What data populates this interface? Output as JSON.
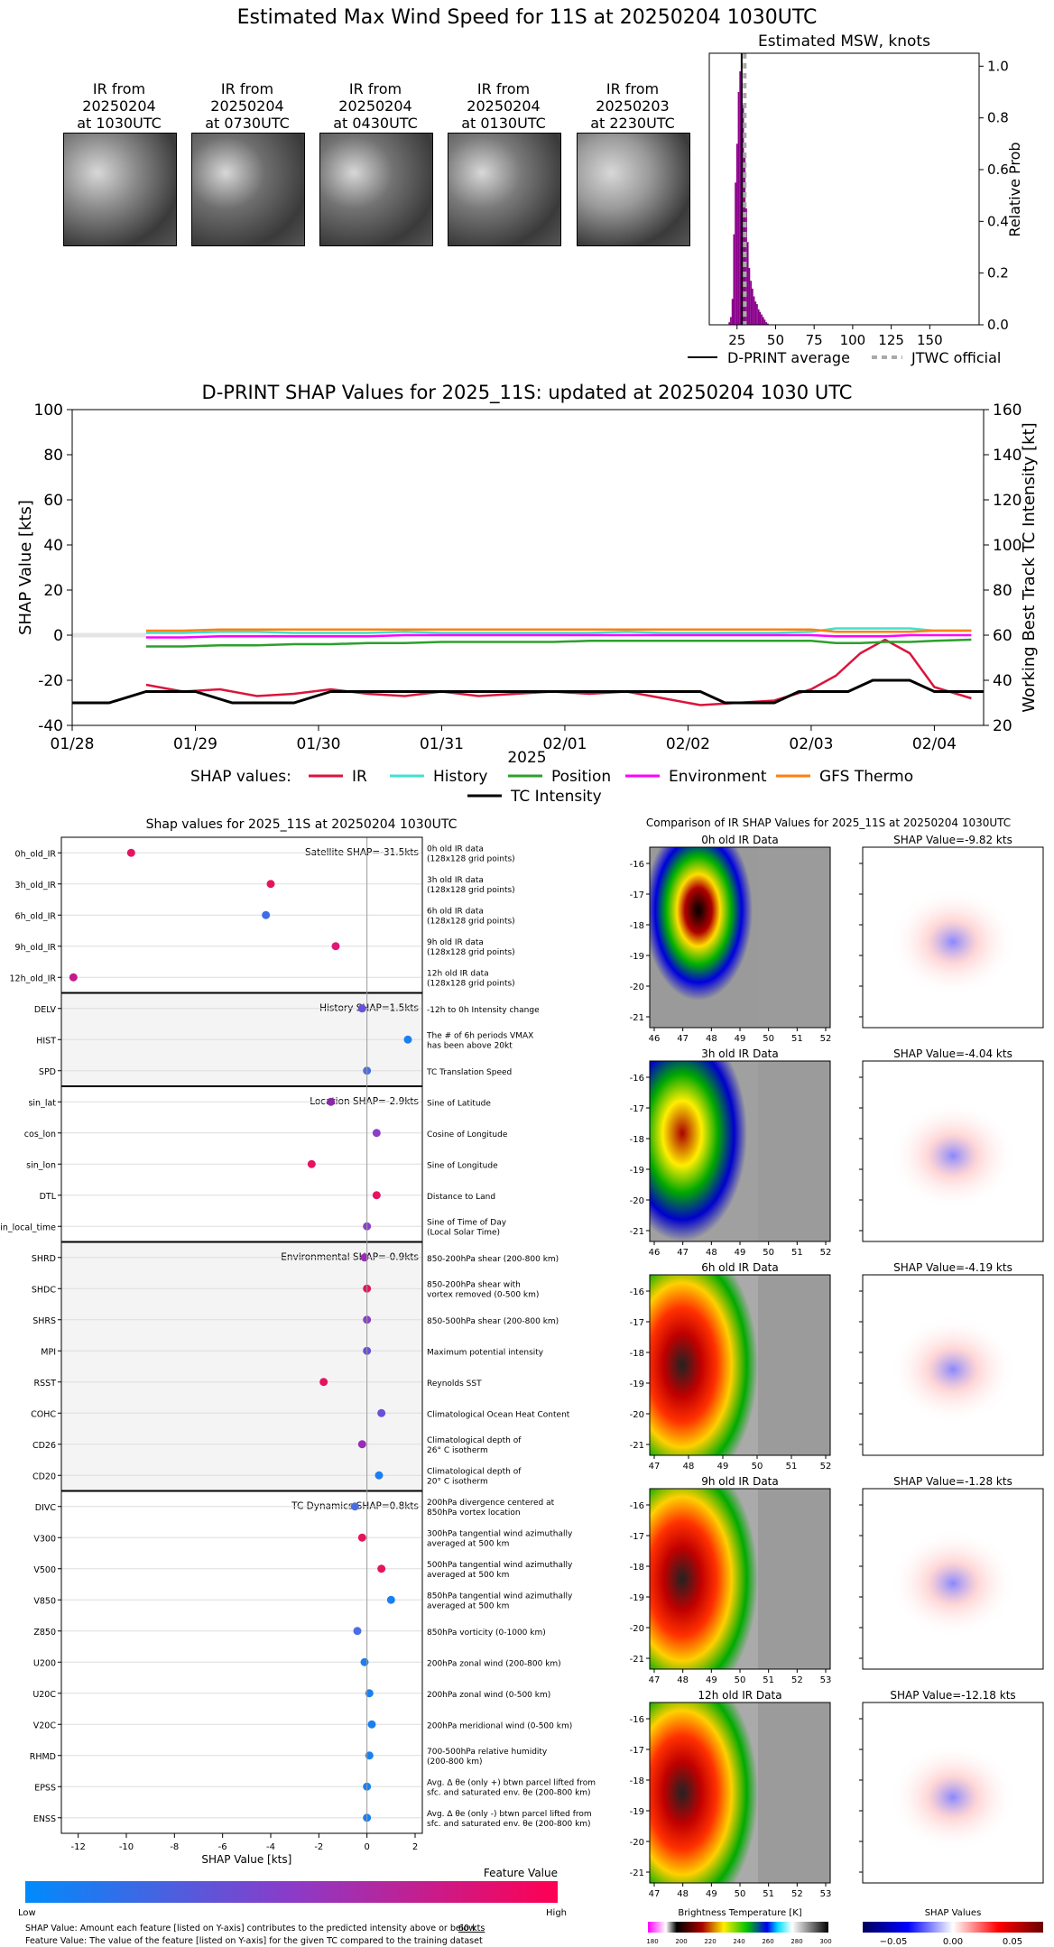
{
  "header": {
    "title": "Estimated Max Wind Speed for 11S at 20250204 1030UTC"
  },
  "ir_thumbs": [
    {
      "l1": "IR from",
      "l2": "20250204",
      "l3": "at 1030UTC",
      "tone": "#8a8a8a"
    },
    {
      "l1": "IR from",
      "l2": "20250204",
      "l3": "at 0730UTC",
      "tone": "#6f6f6f"
    },
    {
      "l1": "IR from",
      "l2": "20250204",
      "l3": "at 0430UTC",
      "tone": "#737373"
    },
    {
      "l1": "IR from",
      "l2": "20250204",
      "l3": "at 0130UTC",
      "tone": "#7a7a7a"
    },
    {
      "l1": "IR from",
      "l2": "20250203",
      "l3": "at 2230UTC",
      "tone": "#9a9a9a"
    }
  ],
  "msw_chart": {
    "title": "Estimated MSW, knots",
    "ylabel": "Relative Prob",
    "xticks": [
      25,
      50,
      75,
      100,
      125,
      150
    ],
    "yticks": [
      0.0,
      0.2,
      0.4,
      0.6,
      0.8,
      1.0
    ],
    "xlim": [
      7,
      182
    ],
    "ylim": [
      0,
      1.05
    ],
    "legend": {
      "avg": "D-PRINT average",
      "official": "JTWC official"
    },
    "dprint_average": 28,
    "jtwc_official": 30,
    "color": "#8b008b"
  },
  "chart_data": [
    {
      "type": "bar",
      "title": "Estimated MSW, knots",
      "ylabel": "Relative Prob",
      "x": [
        20,
        21,
        22,
        23,
        24,
        25,
        26,
        27,
        28,
        29,
        30,
        31,
        32,
        33,
        34,
        35,
        36,
        37,
        38,
        39,
        40,
        41,
        42,
        43,
        44,
        45
      ],
      "values": [
        0.01,
        0.03,
        0.1,
        0.35,
        0.55,
        0.7,
        0.9,
        0.98,
        0.95,
        0.85,
        0.65,
        0.45,
        0.32,
        0.22,
        0.17,
        0.14,
        0.11,
        0.09,
        0.08,
        0.06,
        0.05,
        0.04,
        0.03,
        0.02,
        0.01,
        0.005
      ]
    },
    {
      "type": "line",
      "title": "D-PRINT SHAP Values for 2025_11S: updated at 20250204 1030 UTC",
      "xlabel": "2025",
      "ylabel": "SHAP Value [kts]",
      "y2label": "Working Best Track TC Intensity [kt]",
      "xticks": [
        "01/28",
        "01/29",
        "01/30",
        "01/31",
        "02/01",
        "02/02",
        "02/03",
        "02/04"
      ],
      "ylim": [
        -40,
        100
      ],
      "y2lim": [
        20,
        160
      ],
      "x_days": [
        0.6,
        0.9,
        1.2,
        1.5,
        1.8,
        2.1,
        2.4,
        2.7,
        3.0,
        3.3,
        3.6,
        3.9,
        4.2,
        4.5,
        4.8,
        5.1,
        5.4,
        5.7,
        6.0,
        6.2,
        6.4,
        6.6,
        6.8,
        7.0,
        7.3
      ],
      "series": [
        {
          "name": "IR",
          "color": "#dc143c",
          "values": [
            -22,
            -25,
            -24,
            -27,
            -26,
            -24,
            -26,
            -27,
            -25,
            -27,
            -26,
            -25,
            -26,
            -25,
            -28,
            -31,
            -30,
            -29,
            -24,
            -18,
            -8,
            -2,
            -8,
            -23,
            -28
          ]
        },
        {
          "name": "History",
          "color": "#40e0d0",
          "values": [
            1,
            1,
            1.5,
            1.5,
            1,
            1,
            1,
            1.5,
            1,
            1,
            1,
            1,
            1,
            1.5,
            1,
            1,
            1,
            1,
            1.5,
            3,
            3,
            3,
            3,
            2,
            2
          ]
        },
        {
          "name": "Position",
          "color": "#2ca02c",
          "values": [
            -5,
            -5,
            -4.5,
            -4.5,
            -4,
            -4,
            -3.5,
            -3.5,
            -3,
            -3,
            -3,
            -3,
            -2.5,
            -2.5,
            -2.5,
            -2.5,
            -2.5,
            -2.5,
            -2.5,
            -3.5,
            -3.5,
            -3,
            -3,
            -2.5,
            -2
          ]
        },
        {
          "name": "Environment",
          "color": "#ff00ff",
          "values": [
            -1,
            -1,
            -0.5,
            -0.5,
            -0.5,
            -0.5,
            -0.5,
            0,
            0,
            0,
            0,
            0,
            0,
            0,
            0,
            0,
            0,
            0,
            0,
            -0.5,
            -0.5,
            -0.5,
            0,
            0,
            0
          ]
        },
        {
          "name": "GFS Thermo",
          "color": "#ff7f0e",
          "values": [
            2,
            2,
            2.5,
            2.5,
            2.5,
            2.5,
            2.5,
            2.5,
            2.5,
            2.5,
            2.5,
            2.5,
            2.5,
            2.5,
            2.5,
            2.5,
            2.5,
            2.5,
            2.5,
            1.5,
            1.5,
            1.5,
            1.5,
            2,
            2
          ]
        }
      ],
      "intensity": {
        "name": "TC Intensity",
        "x_days": [
          0,
          0.3,
          0.6,
          1.0,
          1.3,
          1.8,
          2.1,
          3.0,
          3.6,
          4.2,
          4.5,
          5.1,
          5.3,
          5.7,
          5.9,
          6.3,
          6.5,
          6.8,
          7.0,
          7.4
        ],
        "values": [
          30,
          30,
          35,
          35,
          30,
          30,
          35,
          35,
          35,
          35,
          35,
          35,
          30,
          30,
          35,
          35,
          40,
          40,
          35,
          35
        ]
      }
    },
    {
      "type": "scatter",
      "title": "Shap values for 2025_11S at 20250204 1030UTC",
      "xlabel": "SHAP Value [kts]",
      "xticks": [
        -12,
        -10,
        -8,
        -6,
        -4,
        -2,
        0,
        2
      ],
      "xlim": [
        -12.7,
        2.3
      ],
      "groups": [
        {
          "label": "Satellite SHAP=-31.5kts",
          "features": [
            {
              "name": "0h_old_IR",
              "desc1": "0h old IR data",
              "desc2": "(128x128 grid points)",
              "value": -9.8,
              "color": "#e6145f"
            },
            {
              "name": "3h_old_IR",
              "desc1": "3h old IR data",
              "desc2": "(128x128 grid points)",
              "value": -4.0,
              "color": "#e6145f"
            },
            {
              "name": "6h_old_IR",
              "desc1": "6h old IR data",
              "desc2": "(128x128 grid points)",
              "value": -4.2,
              "color": "#3e6ee8"
            },
            {
              "name": "9h_old_IR",
              "desc1": "9h old IR data",
              "desc2": "(128x128 grid points)",
              "value": -1.3,
              "color": "#e0177a"
            },
            {
              "name": "12h_old_IR",
              "desc1": "12h old IR data",
              "desc2": "(128x128 grid points)",
              "value": -12.2,
              "color": "#c41a8e"
            }
          ]
        },
        {
          "label": "History SHAP=1.5kts",
          "features": [
            {
              "name": "DELV",
              "desc1": "-12h to 0h Intensity change",
              "desc2": "",
              "value": -0.2,
              "color": "#6a4fd8"
            },
            {
              "name": "HIST",
              "desc1": "The # of 6h periods VMAX",
              "desc2": "has been above 20kt",
              "value": 1.7,
              "color": "#1a80f0"
            },
            {
              "name": "SPD",
              "desc1": "TC Translation Speed",
              "desc2": "",
              "value": 0.0,
              "color": "#4a6ee0"
            }
          ]
        },
        {
          "label": "Location SHAP=-2.9kts",
          "features": [
            {
              "name": "sin_lat",
              "desc1": "Sine of Latitude",
              "desc2": "",
              "value": -1.5,
              "color": "#8a2aa8"
            },
            {
              "name": "cos_lon",
              "desc1": "Cosine of Longitude",
              "desc2": "",
              "value": 0.4,
              "color": "#8a3fc8"
            },
            {
              "name": "sin_lon",
              "desc1": "Sine of Longitude",
              "desc2": "",
              "value": -2.3,
              "color": "#e6145f"
            },
            {
              "name": "DTL",
              "desc1": "Distance to Land",
              "desc2": "",
              "value": 0.4,
              "color": "#e6145f"
            },
            {
              "name": "sin_local_time",
              "desc1": "Sine of Time of Day",
              "desc2": "(Local Solar Time)",
              "value": 0.0,
              "color": "#8a3fc8"
            }
          ]
        },
        {
          "label": "Environmental SHAP=-0.9kts",
          "features": [
            {
              "name": "SHRD",
              "desc1": "850-200hPa shear (200-800 km)",
              "desc2": "",
              "value": -0.1,
              "color": "#9a2ab8"
            },
            {
              "name": "SHDC",
              "desc1": "850-200hPa shear with",
              "desc2": "vortex removed (0-500 km)",
              "value": 0.0,
              "color": "#e6145f"
            },
            {
              "name": "SHRS",
              "desc1": "850-500hPa shear (200-800 km)",
              "desc2": "",
              "value": 0.0,
              "color": "#8a3fc8"
            },
            {
              "name": "MPI",
              "desc1": "Maximum potential intensity",
              "desc2": "",
              "value": 0.0,
              "color": "#6a4fd8"
            },
            {
              "name": "RSST",
              "desc1": "Reynolds SST",
              "desc2": "",
              "value": -1.8,
              "color": "#e6145f"
            },
            {
              "name": "COHC",
              "desc1": "Climatological Ocean Heat Content",
              "desc2": "",
              "value": 0.6,
              "color": "#6a4fd8"
            },
            {
              "name": "CD26",
              "desc1": "Climatological depth of",
              "desc2": "26° C isotherm",
              "value": -0.2,
              "color": "#9a2ab8"
            },
            {
              "name": "CD20",
              "desc1": "Climatological depth of",
              "desc2": "20° C isotherm",
              "value": 0.5,
              "color": "#1a80f0"
            }
          ]
        },
        {
          "label": "TC Dynamics SHAP=0.8kts",
          "features": [
            {
              "name": "DIVC",
              "desc1": "200hPa divergence centered at",
              "desc2": "850hPa vortex location",
              "value": -0.5,
              "color": "#4a6ee0"
            },
            {
              "name": "V300",
              "desc1": "300hPa tangential wind azimuthally",
              "desc2": "averaged at 500 km",
              "value": -0.2,
              "color": "#e6145f"
            },
            {
              "name": "V500",
              "desc1": "500hPa tangential wind azimuthally",
              "desc2": "averaged at 500 km",
              "value": 0.6,
              "color": "#e6145f"
            },
            {
              "name": "V850",
              "desc1": "850hPa tangential wind azimuthally",
              "desc2": "averaged at 500 km",
              "value": 1.0,
              "color": "#1a80f0"
            },
            {
              "name": "Z850",
              "desc1": "850hPa vorticity (0-1000 km)",
              "desc2": "",
              "value": -0.4,
              "color": "#4a6ee0"
            },
            {
              "name": "U200",
              "desc1": "200hPa zonal wind (200-800 km)",
              "desc2": "",
              "value": -0.1,
              "color": "#1a80f0"
            },
            {
              "name": "U20C",
              "desc1": "200hPa zonal wind (0-500 km)",
              "desc2": "",
              "value": 0.1,
              "color": "#1a80f0"
            },
            {
              "name": "V20C",
              "desc1": "200hPa meridional wind (0-500 km)",
              "desc2": "",
              "value": 0.2,
              "color": "#1a80f0"
            },
            {
              "name": "RHMD",
              "desc1": "700-500hPa relative humidity",
              "desc2": "(200-800 km)",
              "value": 0.1,
              "color": "#1a80f0"
            },
            {
              "name": "EPSS",
              "desc1": "Avg. Δ θe (only +) btwn parcel lifted from",
              "desc2": "sfc. and saturated env. θe (200-800 km)",
              "value": 0.0,
              "color": "#1a80f0"
            },
            {
              "name": "ENSS",
              "desc1": "Avg. Δ θe (only -) btwn parcel lifted from",
              "desc2": "sfc. and saturated env. θe (200-800 km)",
              "value": 0.0,
              "color": "#1a80f0"
            }
          ]
        }
      ]
    }
  ],
  "main_chart": {
    "legend_label": "SHAP values:"
  },
  "colorbar": {
    "title": "Feature Value",
    "low": "Low",
    "high": "High",
    "note1": "SHAP Value: Amount each feature [listed on Y-axis] contributes to the predicted intensity above or below ",
    "note1_link": "60 kts",
    "note2": "Feature Value: The value of the feature [listed on Y-axis] for the given TC compared to the training dataset"
  },
  "ir_compare": {
    "title": "Comparison of IR SHAP Values for 2025_11S at 20250204 1030UTC",
    "yticks": [
      "-16",
      "-17",
      "-18",
      "-19",
      "-20",
      "-21"
    ],
    "rows": [
      {
        "ir_title": "0h old IR Data",
        "shap_title": "SHAP Value=-9.82 kts",
        "xticks": [
          "46",
          "47",
          "48",
          "49",
          "50",
          "51",
          "52"
        ]
      },
      {
        "ir_title": "3h old IR Data",
        "shap_title": "SHAP Value=-4.04 kts",
        "xticks": [
          "46",
          "47",
          "48",
          "49",
          "50",
          "51",
          "52"
        ]
      },
      {
        "ir_title": "6h old IR Data",
        "shap_title": "SHAP Value=-4.19 kts",
        "xticks": [
          "47",
          "48",
          "49",
          "50",
          "51",
          "52"
        ]
      },
      {
        "ir_title": "9h old IR Data",
        "shap_title": "SHAP Value=-1.28 kts",
        "xticks": [
          "47",
          "48",
          "49",
          "50",
          "51",
          "52",
          "53"
        ]
      },
      {
        "ir_title": "12h old IR Data",
        "shap_title": "SHAP Value=-12.18 kts",
        "xticks": [
          "47",
          "48",
          "49",
          "50",
          "51",
          "52",
          "53"
        ]
      }
    ],
    "bt_title": "Brightness Temperature [K]",
    "bt_ticks": [
      "180",
      "200",
      "220",
      "240",
      "260",
      "280",
      "300"
    ],
    "sv_title": "SHAP Values",
    "sv_ticks": [
      "−0.05",
      "0.00",
      "0.05"
    ]
  }
}
